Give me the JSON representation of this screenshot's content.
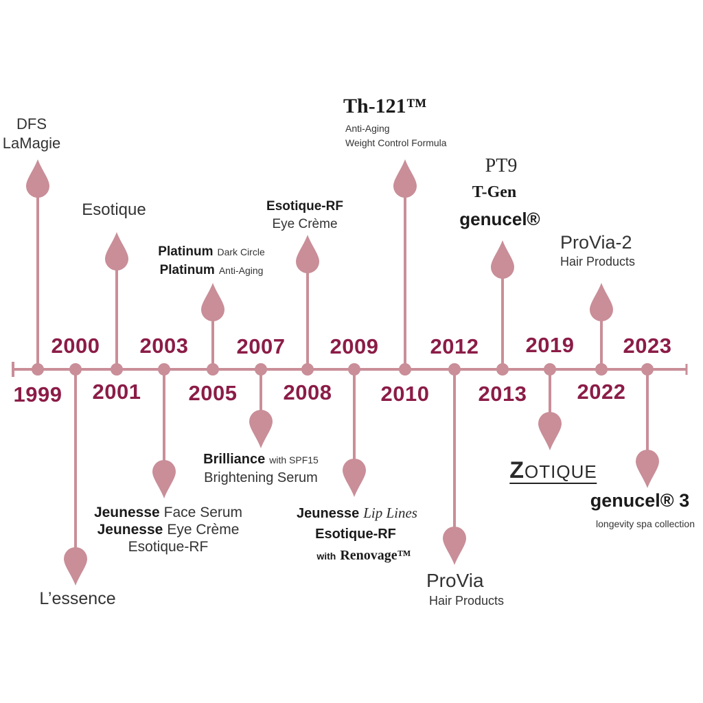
{
  "colors": {
    "line": "#c98e98",
    "year": "#8b1c47",
    "text": "#2a2a2a"
  },
  "events": [
    {
      "year": "1999",
      "side": "up",
      "lines": [
        "DFS",
        "LaMagie"
      ]
    },
    {
      "year": "2000",
      "side": "down",
      "lines": [
        "L’essence"
      ]
    },
    {
      "year": "2001",
      "side": "up",
      "lines": [
        "Esotique"
      ]
    },
    {
      "year": "2003",
      "side": "down",
      "lines": [
        [
          "Jeunesse",
          "Face Serum"
        ],
        [
          "Jeunesse",
          "Eye Crème"
        ],
        "Esotique-RF"
      ]
    },
    {
      "year": "2005",
      "side": "up",
      "lines": [
        [
          "Platinum",
          "Dark Circle"
        ],
        [
          "Platinum",
          "Anti-Aging"
        ]
      ]
    },
    {
      "year": "2007",
      "side": "down",
      "lines": [
        [
          "Brilliance",
          "with SPF15"
        ],
        "Brightening Serum"
      ]
    },
    {
      "year": "2008",
      "side": "up",
      "lines": [
        "Esotique-RF",
        "Eye Crème"
      ]
    },
    {
      "year": "2009",
      "side": "down",
      "lines": [
        [
          "Jeunesse",
          "Lip Lines"
        ],
        "Esotique-RF",
        [
          "with",
          "Renovage™"
        ]
      ]
    },
    {
      "year": "2010",
      "side": "up",
      "lines": [
        "Th-121™",
        "Anti-Aging",
        "Weight Control Formula"
      ]
    },
    {
      "year": "2012",
      "side": "down",
      "lines": [
        "ProVia",
        "Hair Products"
      ]
    },
    {
      "year": "2013",
      "side": "up",
      "lines": [
        "PT9",
        "T-Gen",
        "genucel®"
      ]
    },
    {
      "year": "2019",
      "side": "down",
      "lines": [
        "ZOTIQUE"
      ]
    },
    {
      "year": "2022",
      "side": "up",
      "lines": [
        "ProVia-2",
        "Hair Products"
      ]
    },
    {
      "year": "2023",
      "side": "down",
      "lines": [
        "genucel® 3",
        "longevity spa collection"
      ]
    }
  ]
}
